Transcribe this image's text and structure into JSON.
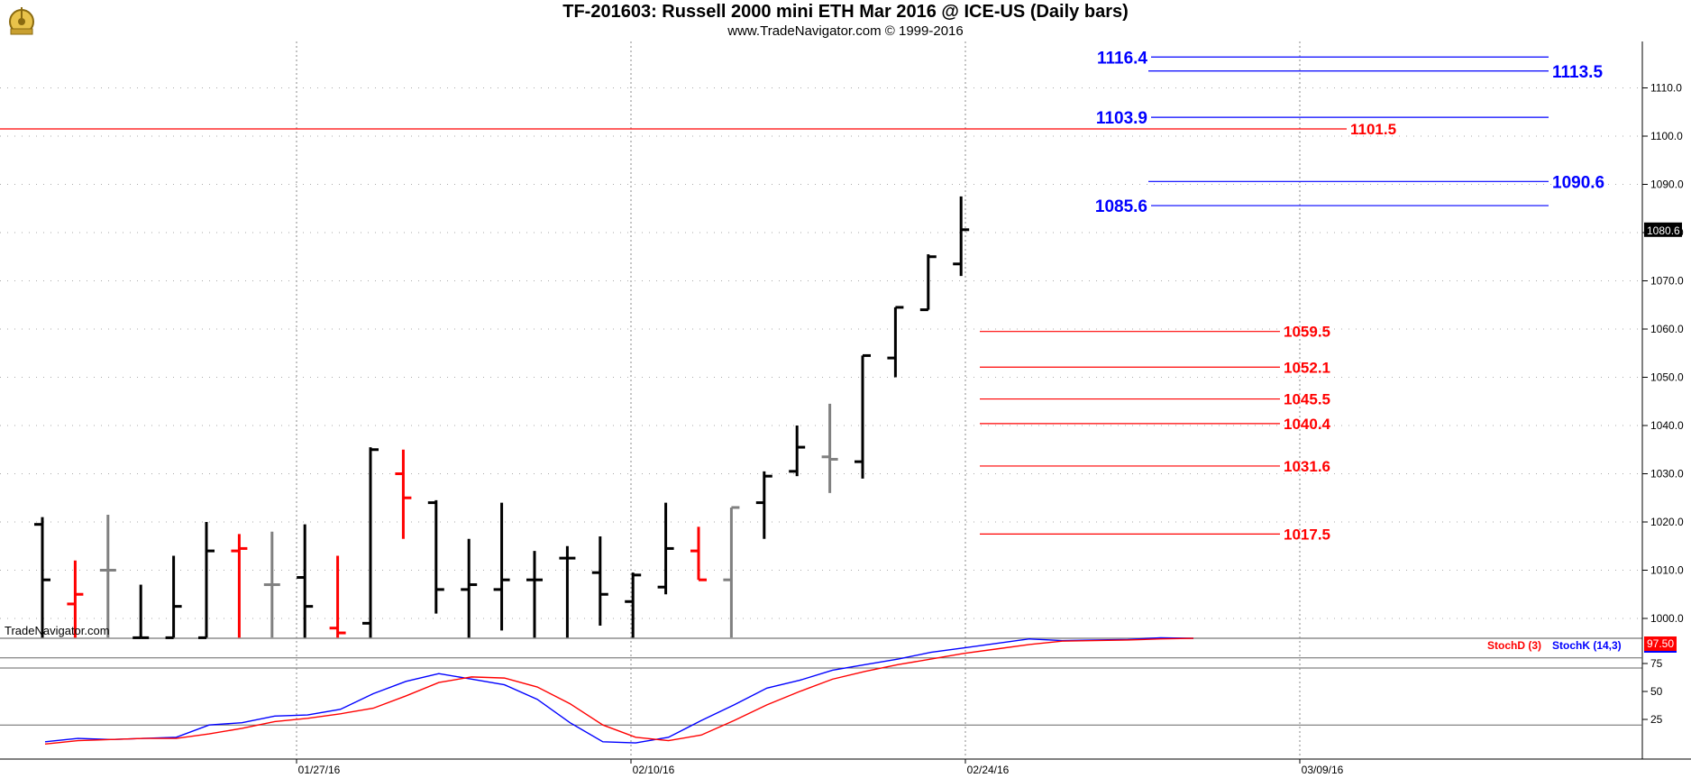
{
  "header": {
    "title": "TF-201603:  Russell 2000 mini ETH Mar 2016 @ ICE-US  (Daily bars)",
    "subtitle": "www.TradeNavigator.com © 1999-2016",
    "watermark": "TradeNavigator.com"
  },
  "chart_data": [
    {
      "type": "ohlc",
      "title": "TF-201603:  Russell 2000 mini ETH Mar 2016 @ ICE-US  (Daily bars)",
      "y_ticks": [
        1000,
        1010,
        1020,
        1030,
        1040,
        1050,
        1060,
        1070,
        1080,
        1090,
        1100,
        1110
      ],
      "y_tick_labels": [
        "1000.0",
        "1010.0",
        "1020.0",
        "1030.0",
        "1040.0",
        "1050.0",
        "1060.0",
        "1070.0",
        "1080.0",
        "1090.0",
        "1100.0",
        "1110.0"
      ],
      "x_labels": [
        "01/27/16",
        "02/10/16",
        "02/24/16",
        "03/09/16"
      ],
      "last_price_label": "1080.6",
      "colors": {
        "up": "#000000",
        "down": "#ff0000",
        "neutral": "#808080",
        "level_red": "#ff0000",
        "level_blue": "#0000ff",
        "grid": "#888888"
      },
      "bars": [
        {
          "open": 1019.5,
          "high": 1021,
          "low": 996,
          "close": 1008,
          "color": "#000000"
        },
        {
          "open": 1003,
          "high": 1012,
          "low": 996,
          "close": 1005,
          "color": "#ff0000"
        },
        {
          "open": 1010,
          "high": 1021.5,
          "low": 996,
          "close": 1010,
          "color": "#808080"
        },
        {
          "open": 996,
          "high": 1007,
          "low": 996,
          "close": 996,
          "color": "#000000"
        },
        {
          "open": 996,
          "high": 1013,
          "low": 996,
          "close": 1002.5,
          "color": "#000000"
        },
        {
          "open": 996,
          "high": 1020,
          "low": 996,
          "close": 1014,
          "color": "#000000"
        },
        {
          "open": 1014,
          "high": 1017.5,
          "low": 996,
          "close": 1014.5,
          "color": "#ff0000"
        },
        {
          "open": 1007,
          "high": 1018,
          "low": 996,
          "close": 1007,
          "color": "#808080"
        },
        {
          "open": 1008.5,
          "high": 1019.5,
          "low": 996,
          "close": 1002.5,
          "color": "#000000"
        },
        {
          "open": 998,
          "high": 1013,
          "low": 996,
          "close": 997,
          "color": "#ff0000"
        },
        {
          "open": 999,
          "high": 1035.5,
          "low": 996,
          "close": 1035,
          "color": "#000000"
        },
        {
          "open": 1030,
          "high": 1035,
          "low": 1016.5,
          "close": 1025,
          "color": "#ff0000"
        },
        {
          "open": 1024,
          "high": 1024.5,
          "low": 1001,
          "close": 1006,
          "color": "#000000"
        },
        {
          "open": 1006,
          "high": 1016.5,
          "low": 996,
          "close": 1007,
          "color": "#000000"
        },
        {
          "open": 1006,
          "high": 1024,
          "low": 997.5,
          "close": 1008,
          "color": "#000000"
        },
        {
          "open": 1008,
          "high": 1014,
          "low": 996,
          "close": 1008,
          "color": "#000000"
        },
        {
          "open": 1012.5,
          "high": 1015,
          "low": 996,
          "close": 1012.5,
          "color": "#000000"
        },
        {
          "open": 1009.5,
          "high": 1017,
          "low": 998.5,
          "close": 1005,
          "color": "#000000"
        },
        {
          "open": 1003.5,
          "high": 1009.5,
          "low": 996,
          "close": 1009,
          "color": "#000000"
        },
        {
          "open": 1006.5,
          "high": 1024,
          "low": 1005,
          "close": 1014.5,
          "color": "#000000"
        },
        {
          "open": 1014,
          "high": 1019,
          "low": 1008,
          "close": 1008,
          "color": "#ff0000"
        },
        {
          "open": 1008,
          "high": 1023,
          "low": 996,
          "close": 1023,
          "color": "#808080"
        },
        {
          "open": 1024,
          "high": 1030.5,
          "low": 1016.5,
          "close": 1029.5,
          "color": "#000000"
        },
        {
          "open": 1030.5,
          "high": 1040,
          "low": 1029.5,
          "close": 1035.5,
          "color": "#000000"
        },
        {
          "open": 1033.5,
          "high": 1044.5,
          "low": 1026,
          "close": 1033,
          "color": "#808080"
        },
        {
          "open": 1032.5,
          "high": 1054.5,
          "low": 1029,
          "close": 1054.5,
          "color": "#000000"
        },
        {
          "open": 1054,
          "high": 1064.5,
          "low": 1050,
          "close": 1064.5,
          "color": "#000000"
        },
        {
          "open": 1064,
          "high": 1075.5,
          "low": 1064,
          "close": 1075,
          "color": "#000000"
        },
        {
          "open": 1073.5,
          "high": 1087.5,
          "low": 1071,
          "close": 1080.6,
          "color": "#000000"
        }
      ],
      "levels_red": [
        {
          "value": 1101.5,
          "label": "1101.5",
          "span": "full"
        },
        {
          "value": 1059.5,
          "label": "1059.5",
          "span": "segment"
        },
        {
          "value": 1052.1,
          "label": "1052.1",
          "span": "segment"
        },
        {
          "value": 1045.5,
          "label": "1045.5",
          "span": "segment"
        },
        {
          "value": 1040.4,
          "label": "1040.4",
          "span": "segment"
        },
        {
          "value": 1031.6,
          "label": "1031.6",
          "span": "segment"
        },
        {
          "value": 1017.5,
          "label": "1017.5",
          "span": "segment"
        }
      ],
      "levels_blue": [
        {
          "value": 1116.4,
          "label": "1116.4",
          "label_side": "left"
        },
        {
          "value": 1113.5,
          "label": "1113.5",
          "label_side": "right"
        },
        {
          "value": 1103.9,
          "label": "1103.9",
          "label_side": "left"
        },
        {
          "value": 1090.6,
          "label": "1090.6",
          "label_side": "right"
        },
        {
          "value": 1085.6,
          "label": "1085.6",
          "label_side": "left"
        }
      ]
    },
    {
      "type": "line",
      "title": "",
      "y_ticks": [
        25,
        50,
        75
      ],
      "y_tick_labels": [
        "25",
        "50",
        "75"
      ],
      "legend": [
        "StochD (3)",
        "StochK (14,3)"
      ],
      "last_value_label": "97.50",
      "series": [
        {
          "name": "StochK (14,3)",
          "color": "#0000ff",
          "values": [
            5,
            8,
            7,
            8,
            9,
            20,
            22,
            28,
            29,
            34,
            48,
            59,
            66,
            61,
            56,
            43,
            22,
            5,
            4,
            9,
            24,
            38,
            53,
            60,
            69,
            74,
            79,
            85,
            89,
            93,
            97,
            95.5,
            96,
            96.5,
            98,
            97.5
          ]
        },
        {
          "name": "StochD (3)",
          "color": "#ff0000",
          "values": [
            3,
            6,
            7,
            8,
            8,
            12,
            17,
            23,
            26,
            30,
            35,
            46,
            58,
            63,
            62,
            54,
            39,
            20,
            9,
            6,
            11,
            24,
            38,
            50,
            61,
            68,
            74,
            79,
            84,
            88,
            92,
            95,
            95.5,
            96,
            97,
            97.5
          ]
        }
      ]
    }
  ]
}
